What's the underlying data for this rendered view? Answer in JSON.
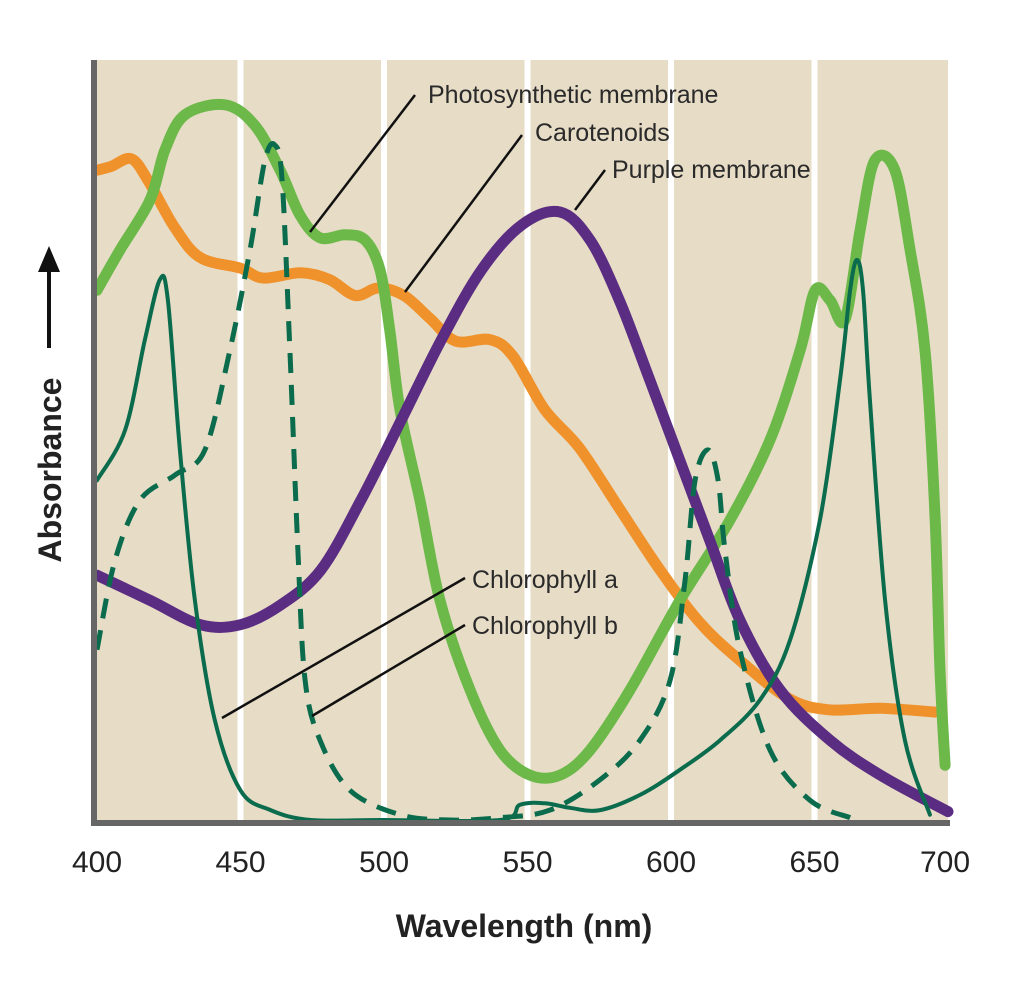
{
  "chart_data": {
    "type": "line",
    "title": "",
    "xlabel": "Wavelength (nm)",
    "ylabel": "Absorbance",
    "xlim": [
      400,
      700
    ],
    "ylim": [
      0,
      1
    ],
    "x_ticks": [
      "400",
      "450",
      "500",
      "550",
      "600",
      "650",
      "700"
    ],
    "grid": "vertical white lines at each tick",
    "legend": "none (direct labels with leader lines)",
    "background_color": "#e7dcc6",
    "series": [
      {
        "name": "Photosynthetic membrane",
        "color": "#6cb94a",
        "style": "solid-thick",
        "x": [
          400,
          408,
          418.5,
          423.7,
          430.7,
          444.6,
          455,
          463.8,
          470.7,
          477.7,
          486.4,
          493.4,
          498.6,
          502,
          505.6,
          512.5,
          519.5,
          530,
          540.4,
          550.9,
          561.3,
          571.8,
          585.7,
          603.1,
          620.6,
          634.5,
          645,
          650.2,
          655.4,
          660.6,
          665.9,
          671,
          678,
          683.3,
          688.5,
          692,
          693.7,
          695.5
        ],
        "y": [
          0.697,
          0.75,
          0.816,
          0.882,
          0.928,
          0.941,
          0.914,
          0.855,
          0.796,
          0.766,
          0.77,
          0.763,
          0.724,
          0.645,
          0.539,
          0.421,
          0.289,
          0.171,
          0.092,
          0.059,
          0.059,
          0.092,
          0.171,
          0.289,
          0.395,
          0.5,
          0.618,
          0.697,
          0.684,
          0.658,
          0.776,
          0.868,
          0.855,
          0.75,
          0.618,
          0.4,
          0.2,
          0.072
        ]
      },
      {
        "name": "Carotenoids",
        "color": "#f0922b",
        "style": "solid-thick",
        "x": [
          400,
          405,
          412,
          418,
          427,
          436,
          450,
          458,
          471,
          481,
          490,
          498,
          507,
          516,
          525,
          537,
          545,
          556,
          568,
          582,
          596,
          610,
          624,
          641,
          655,
          673,
          692
        ],
        "y": [
          0.855,
          0.86,
          0.87,
          0.84,
          0.78,
          0.74,
          0.726,
          0.713,
          0.72,
          0.711,
          0.69,
          0.7,
          0.69,
          0.66,
          0.63,
          0.632,
          0.61,
          0.54,
          0.49,
          0.41,
          0.33,
          0.26,
          0.21,
          0.16,
          0.145,
          0.147,
          0.142
        ]
      },
      {
        "name": "Purple membrane",
        "color": "#5b2d82",
        "style": "solid-thick",
        "x": [
          400,
          418.5,
          436,
          450,
          464,
          478,
          492,
          506,
          520,
          534,
          548,
          561.3,
          571.8,
          582,
          592.6,
          603,
          613.5,
          624,
          638,
          655.4,
          673,
          696.5
        ],
        "y": [
          0.322,
          0.289,
          0.257,
          0.257,
          0.283,
          0.329,
          0.421,
          0.526,
          0.632,
          0.724,
          0.783,
          0.8,
          0.763,
          0.684,
          0.579,
          0.474,
          0.368,
          0.263,
          0.171,
          0.105,
          0.059,
          0.011
        ]
      },
      {
        "name": "Chlorophyll a",
        "color": "#0b6b4d",
        "style": "solid-thin",
        "x": [
          400,
          409.8,
          416.7,
          421.9,
          424.7,
          428.9,
          434.1,
          441,
          450,
          460.5,
          474.5,
          500,
          540.4,
          547.4,
          556.1,
          564.8,
          575.3,
          589.2,
          603.1,
          617.1,
          631,
          641.5,
          651.9,
          658.9,
          662.4,
          664.8,
          666.9,
          669.3,
          674.6,
          681.5,
          690.2
        ],
        "y": [
          0.447,
          0.513,
          0.632,
          0.711,
          0.684,
          0.487,
          0.289,
          0.132,
          0.039,
          0.013,
          0.0,
          0.0,
          0.0,
          0.02,
          0.022,
          0.016,
          0.013,
          0.033,
          0.066,
          0.105,
          0.158,
          0.237,
          0.395,
          0.579,
          0.697,
          0.737,
          0.697,
          0.553,
          0.289,
          0.105,
          0.007
        ]
      },
      {
        "name": "Chlorophyll b",
        "color": "#0b6b4d",
        "style": "dashed",
        "x": [
          400,
          406.3,
          415,
          427.2,
          437.6,
          446.3,
          453.3,
          458.5,
          462,
          464.5,
          467.2,
          470,
          472.5,
          477.7,
          488.2,
          505.6,
          523,
          540.4,
          557.8,
          575.3,
          589.2,
          599.7,
          604.9,
          608.4,
          612.9,
          616.4,
          618.8,
          624,
          634.5,
          648.4,
          662.4
        ],
        "y": [
          0.224,
          0.342,
          0.421,
          0.454,
          0.487,
          0.618,
          0.75,
          0.868,
          0.888,
          0.842,
          0.618,
          0.355,
          0.184,
          0.105,
          0.039,
          0.007,
          0.0,
          0.003,
          0.013,
          0.053,
          0.105,
          0.184,
          0.316,
          0.447,
          0.487,
          0.447,
          0.355,
          0.224,
          0.092,
          0.026,
          0.003
        ]
      }
    ],
    "annotations": [
      {
        "text": "Photosynthetic membrane",
        "series": "Photosynthetic membrane"
      },
      {
        "text": "Carotenoids",
        "series": "Carotenoids"
      },
      {
        "text": "Purple membrane",
        "series": "Purple membrane"
      },
      {
        "text": "Chlorophyll a",
        "series": "Chlorophyll a"
      },
      {
        "text": "Chlorophyll b",
        "series": "Chlorophyll b"
      }
    ]
  }
}
